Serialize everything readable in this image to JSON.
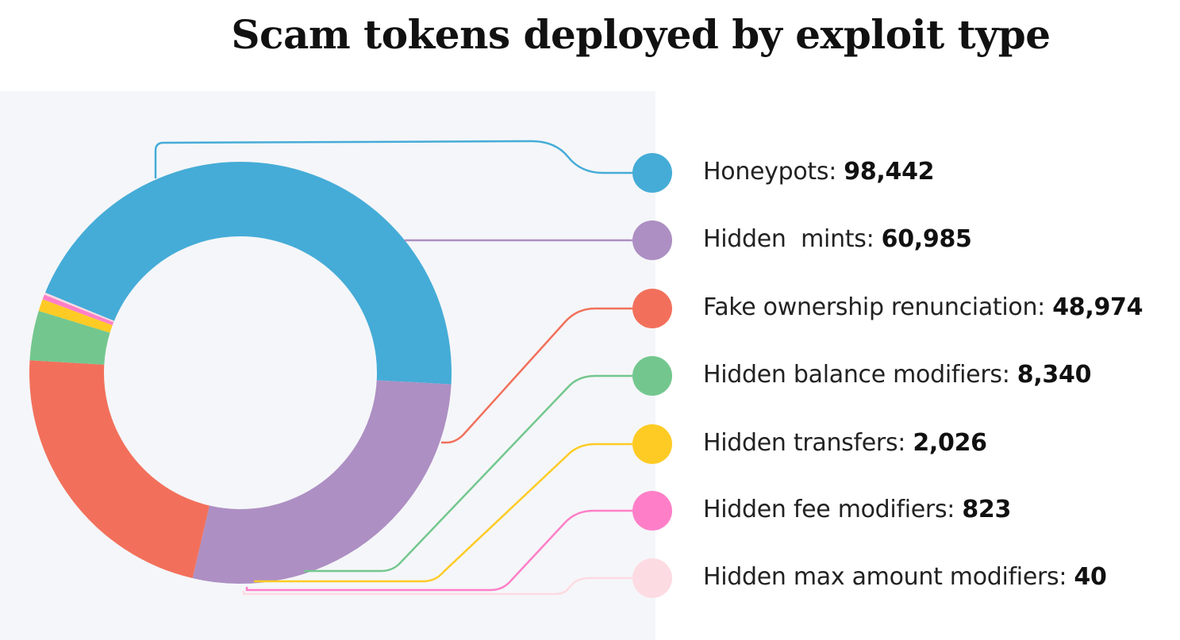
{
  "title": "Scam tokens deployed by exploit type",
  "chart_data": {
    "type": "pie",
    "title": "Scam tokens deployed by exploit type",
    "donut": true,
    "legend_placement": "right",
    "series": [
      {
        "name": "Honeypots",
        "value": 98442,
        "value_label": "98,442",
        "color": "#45acd7"
      },
      {
        "name": "Hidden  mints",
        "value": 60985,
        "value_label": "60,985",
        "color": "#ad8fc3"
      },
      {
        "name": "Fake ownership renunciation",
        "value": 48974,
        "value_label": "48,974",
        "color": "#f2705b"
      },
      {
        "name": "Hidden balance modifiers",
        "value": 8340,
        "value_label": "8,340",
        "color": "#73c78e"
      },
      {
        "name": "Hidden transfers",
        "value": 2026,
        "value_label": "2,026",
        "color": "#fecb25"
      },
      {
        "name": "Hidden fee modifiers",
        "value": 823,
        "value_label": "823",
        "color": "#fe7fc8"
      },
      {
        "name": "Hidden max amount modifiers",
        "value": 40,
        "value_label": "40",
        "color": "#fddbe2"
      }
    ]
  }
}
